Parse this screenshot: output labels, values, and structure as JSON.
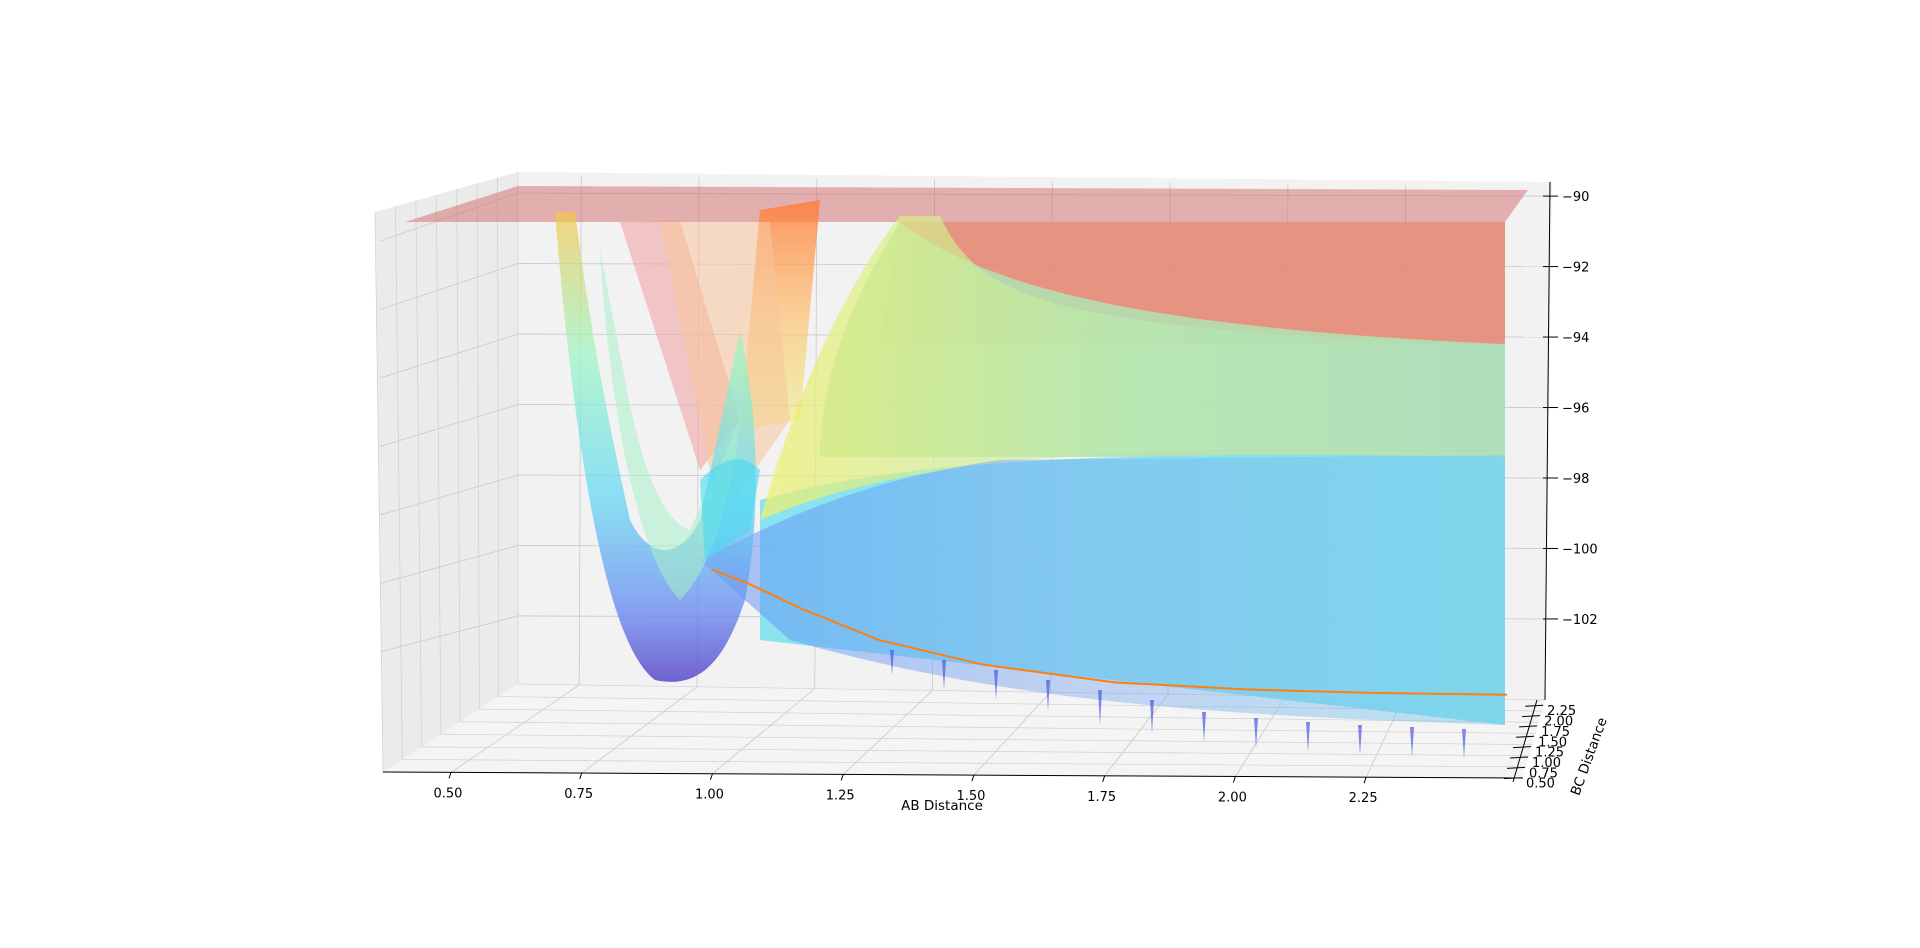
{
  "chart_data": {
    "type": "surface3d",
    "title": "",
    "xlabel": "AB Distance",
    "ylabel": "BC Distance",
    "zlabel": "",
    "x_ticks": [
      "0.50",
      "0.75",
      "1.00",
      "1.25",
      "1.50",
      "1.75",
      "2.00",
      "2.25"
    ],
    "x_tick_values": [
      0.5,
      0.75,
      1.0,
      1.25,
      1.5,
      1.75,
      2.0,
      2.25
    ],
    "y_ticks": [
      "0.50",
      "0.75",
      "1.00",
      "1.25",
      "1.50",
      "1.75",
      "2.00",
      "2.25"
    ],
    "y_tick_values": [
      0.5,
      0.75,
      1.0,
      1.25,
      1.5,
      1.75,
      2.0,
      2.25
    ],
    "z_ticks": [
      "−90",
      "−92",
      "−94",
      "−96",
      "−98",
      "−100",
      "−102"
    ],
    "z_tick_values": [
      -90,
      -92,
      -94,
      -96,
      -98,
      -100,
      -102
    ],
    "xlim": [
      0.37,
      2.55
    ],
    "ylim": [
      0.42,
      2.4
    ],
    "zlim": [
      -104.3,
      -89.6
    ],
    "grid": true,
    "surface_colormap": "jet",
    "surface_alpha": 0.5,
    "series": [
      {
        "type": "line3d",
        "color": "#ff7f0e",
        "x": [
          0.98,
          1.05,
          1.15,
          1.3,
          1.5,
          1.75,
          2.0,
          2.25,
          2.5
        ],
        "z": [
          -100.6,
          -101.0,
          -101.7,
          -102.6,
          -103.3,
          -103.8,
          -104.0,
          -104.1,
          -104.15
        ]
      }
    ],
    "surface_levels_on_back_wall": [
      {
        "z": -90.8,
        "color": "#e48a74"
      },
      {
        "z": -94.2,
        "color": "#b3dfaf"
      },
      {
        "z": -97.4,
        "color": "#7ee1ee"
      }
    ]
  }
}
